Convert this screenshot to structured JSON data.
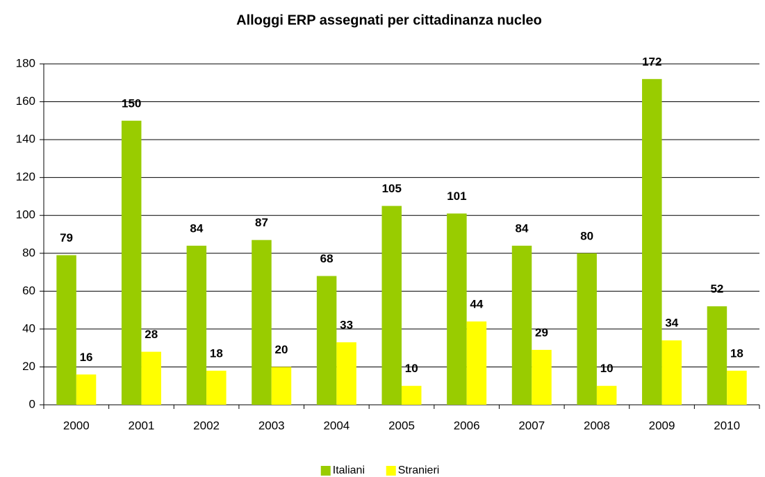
{
  "chart_data": {
    "type": "bar",
    "title": "Alloggi ERP assegnati per cittadinanza nucleo",
    "categories": [
      "2000",
      "2001",
      "2002",
      "2003",
      "2004",
      "2005",
      "2006",
      "2007",
      "2008",
      "2009",
      "2010"
    ],
    "series": [
      {
        "name": "Italiani",
        "color": "#99cc00",
        "values": [
          79,
          150,
          84,
          87,
          68,
          105,
          101,
          84,
          80,
          172,
          52
        ]
      },
      {
        "name": "Stranieri",
        "color": "#ffff00",
        "values": [
          16,
          28,
          18,
          20,
          33,
          10,
          44,
          29,
          10,
          34,
          18
        ]
      }
    ],
    "ylim": [
      0,
      180
    ],
    "yticks": [
      0,
      20,
      40,
      60,
      80,
      100,
      120,
      140,
      160,
      180
    ],
    "grid": true,
    "legend": "bottom"
  }
}
